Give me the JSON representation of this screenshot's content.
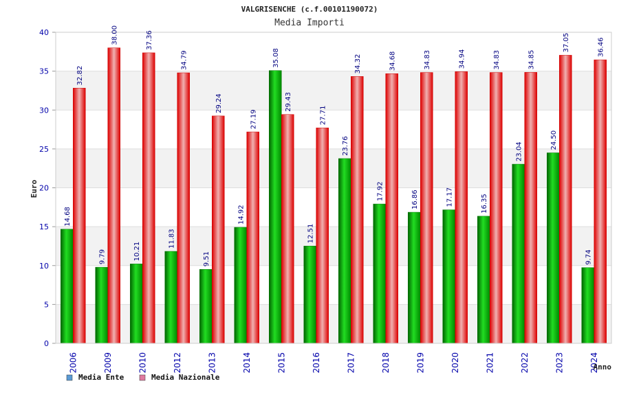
{
  "chart_data": {
    "type": "bar",
    "title": "VALGRISENCHE (c.f.00101190072)",
    "subtitle": "Media Importi",
    "xlabel": "Anno",
    "ylabel": "Euro",
    "ylim": [
      0,
      40
    ],
    "yticks": [
      0,
      5,
      10,
      15,
      20,
      25,
      30,
      35,
      40
    ],
    "grid": true,
    "legend_position": "bottom-left",
    "categories": [
      "2006",
      "2009",
      "2010",
      "2012",
      "2013",
      "2014",
      "2015",
      "2016",
      "2017",
      "2018",
      "2019",
      "2020",
      "2021",
      "2022",
      "2023",
      "2024"
    ],
    "series": [
      {
        "name": "Media Ente",
        "color": "#00aa00",
        "legend_color": "#5b9bd5",
        "values": [
          14.68,
          9.79,
          10.21,
          11.83,
          9.51,
          14.92,
          35.08,
          12.51,
          23.76,
          17.92,
          16.86,
          17.17,
          16.35,
          23.04,
          24.5,
          9.74
        ],
        "labels": [
          "14.68",
          "9.79",
          "10.21",
          "11.83",
          "9.51",
          "14.92",
          "35.08",
          "12.51",
          "23.76",
          "17.92",
          "16.86",
          "17.17",
          "16.35",
          "23.04",
          "24.50",
          "9.74"
        ]
      },
      {
        "name": "Media Nazionale",
        "color": "#ee0000",
        "legend_color": "#e07aa0",
        "values": [
          32.82,
          38.0,
          37.36,
          34.79,
          29.24,
          27.19,
          29.43,
          27.71,
          34.32,
          34.68,
          34.83,
          34.94,
          34.83,
          34.85,
          37.05,
          36.46
        ],
        "labels": [
          "32.82",
          "38.00",
          "37.36",
          "34.79",
          "29.24",
          "27.19",
          "29.43",
          "27.71",
          "34.32",
          "34.68",
          "34.83",
          "34.94",
          "34.83",
          "34.85",
          "37.05",
          "36.46"
        ]
      }
    ]
  }
}
